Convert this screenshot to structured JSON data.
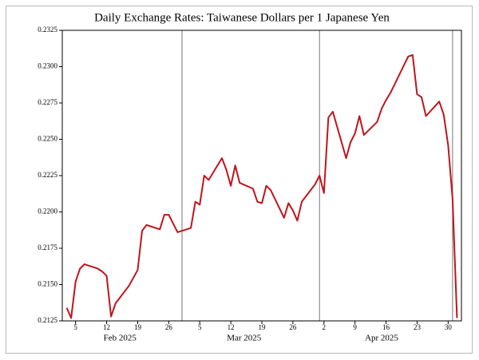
{
  "chart_data": {
    "type": "line",
    "title": "Daily Exchange Rates: Taiwanese Dollars per 1 Japanese Yen",
    "x": [
      "2025-02-03",
      "2025-02-04",
      "2025-02-05",
      "2025-02-06",
      "2025-02-07",
      "2025-02-10",
      "2025-02-11",
      "2025-02-12",
      "2025-02-13",
      "2025-02-14",
      "2025-02-17",
      "2025-02-19",
      "2025-02-20",
      "2025-02-21",
      "2025-02-24",
      "2025-02-25",
      "2025-02-26",
      "2025-02-27",
      "2025-02-28",
      "2025-03-03",
      "2025-03-04",
      "2025-03-05",
      "2025-03-06",
      "2025-03-07",
      "2025-03-10",
      "2025-03-11",
      "2025-03-12",
      "2025-03-13",
      "2025-03-14",
      "2025-03-17",
      "2025-03-18",
      "2025-03-19",
      "2025-03-20",
      "2025-03-21",
      "2025-03-24",
      "2025-03-25",
      "2025-03-26",
      "2025-03-27",
      "2025-03-28",
      "2025-03-31",
      "2025-04-01",
      "2025-04-02",
      "2025-04-03",
      "2025-04-04",
      "2025-04-07",
      "2025-04-08",
      "2025-04-09",
      "2025-04-10",
      "2025-04-11",
      "2025-04-14",
      "2025-04-15",
      "2025-04-16",
      "2025-04-17",
      "2025-04-21",
      "2025-04-22",
      "2025-04-23",
      "2025-04-24",
      "2025-04-25",
      "2025-04-28",
      "2025-04-29",
      "2025-04-30",
      "2025-05-01",
      "2025-05-02"
    ],
    "series": [
      {
        "color": "#c0141c",
        "values": [
          0.2134,
          0.2127,
          0.2152,
          0.2161,
          0.2164,
          0.2161,
          0.2159,
          0.2156,
          0.2128,
          0.2137,
          0.2149,
          0.216,
          0.2187,
          0.2191,
          0.2188,
          0.2198,
          0.2198,
          0.2192,
          0.2186,
          0.2189,
          0.2207,
          0.2205,
          0.2225,
          0.2222,
          0.2237,
          0.2229,
          0.2218,
          0.2232,
          0.222,
          0.2216,
          0.2207,
          0.2206,
          0.2218,
          0.2215,
          0.2196,
          0.2206,
          0.2201,
          0.2194,
          0.2207,
          0.2219,
          0.2225,
          0.2213,
          0.2265,
          0.2269,
          0.2237,
          0.2248,
          0.2254,
          0.2266,
          0.2253,
          0.2262,
          0.2271,
          0.2277,
          0.2282,
          0.2307,
          0.2308,
          0.2281,
          0.2279,
          0.2266,
          0.2276,
          0.2267,
          0.2246,
          0.2209,
          0.2127
        ]
      }
    ],
    "xlim": [
      "2025-02-02",
      "2025-05-03"
    ],
    "xticks": [
      {
        "value": "2025-02-05",
        "label": "5"
      },
      {
        "value": "2025-02-12",
        "label": "12"
      },
      {
        "value": "2025-02-19",
        "label": "19"
      },
      {
        "value": "2025-02-26",
        "label": "26"
      },
      {
        "value": "2025-03-05",
        "label": "5"
      },
      {
        "value": "2025-03-12",
        "label": "12"
      },
      {
        "value": "2025-03-19",
        "label": "19"
      },
      {
        "value": "2025-03-26",
        "label": "26"
      },
      {
        "value": "2025-04-02",
        "label": "2"
      },
      {
        "value": "2025-04-09",
        "label": "9"
      },
      {
        "value": "2025-04-16",
        "label": "16"
      },
      {
        "value": "2025-04-23",
        "label": "23"
      },
      {
        "value": "2025-04-30",
        "label": "30"
      }
    ],
    "x_month_labels": [
      {
        "value": "2025-02-15",
        "label": "Feb 2025"
      },
      {
        "value": "2025-03-15",
        "label": "Mar 2025"
      },
      {
        "value": "2025-04-15",
        "label": "Apr 2025"
      }
    ],
    "x_gridlines": [
      "2025-03-01",
      "2025-04-01",
      "2025-05-01"
    ],
    "ylim": [
      0.2125,
      0.2325
    ],
    "yticks": [
      0.2125,
      {
        "value": 0.215,
        "label": "0.2150"
      },
      0.2175,
      {
        "value": 0.22,
        "label": "0.2200"
      },
      0.2225,
      {
        "value": 0.225,
        "label": "0.2250"
      },
      0.2275,
      {
        "value": 0.23,
        "label": "0.2300"
      },
      0.2325
    ],
    "grid": false
  }
}
